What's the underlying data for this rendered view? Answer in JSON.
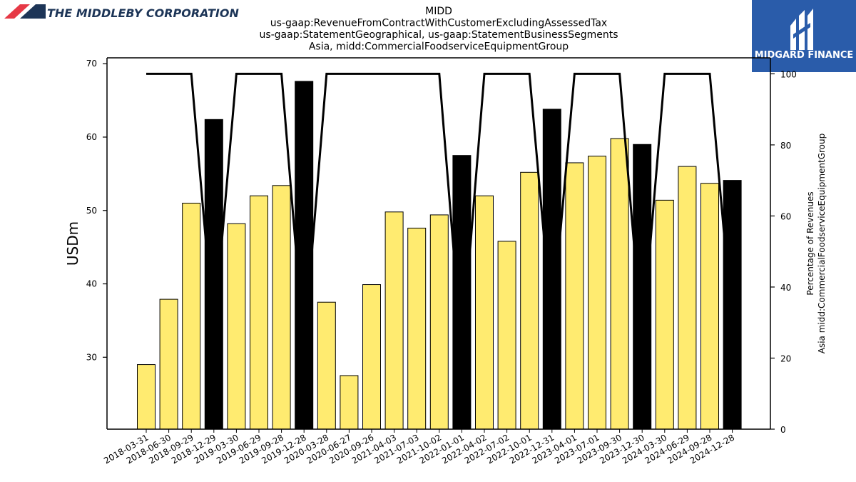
{
  "header": {
    "company_name": "THE MIDDLEBY CORPORATION",
    "badge_text": "MIDGARD FINANCE",
    "colors": {
      "brand_red": "#e63946",
      "brand_navy": "#1d3557",
      "badge_blue": "#2a5caa"
    }
  },
  "chart_data": {
    "type": "bar",
    "title_lines": [
      "MIDD",
      "us-gaap:RevenueFromContractWithCustomerExcludingAssessedTax",
      "us-gaap:StatementGeographical, us-gaap:StatementBusinessSegments",
      "Asia, midd:CommercialFoodserviceEquipmentGroup"
    ],
    "ylabel": "USDm",
    "y2label_lines": [
      "Percentage of Revenues",
      "Asia midd:CommercialFoodserviceEquipmentGroup"
    ],
    "ylim": [
      20.2,
      70.8
    ],
    "y2lim": [
      0,
      104.5
    ],
    "yticks": [
      30,
      40,
      50,
      60,
      70
    ],
    "y2ticks": [
      0,
      20,
      40,
      60,
      80,
      100
    ],
    "categories": [
      "2018-03-31",
      "2018-06-30",
      "2018-09-29",
      "2018-12-29",
      "2019-03-30",
      "2019-06-29",
      "2019-09-28",
      "2019-12-28",
      "2020-03-28",
      "2020-06-27",
      "2020-09-26",
      "2021-04-03",
      "2021-07-03",
      "2021-10-02",
      "2022-01-01",
      "2022-04-02",
      "2022-07-02",
      "2022-10-01",
      "2022-12-31",
      "2023-04-01",
      "2023-07-01",
      "2023-09-30",
      "2023-12-30",
      "2024-03-30",
      "2024-06-29",
      "2024-09-28",
      "2024-12-28"
    ],
    "series": [
      {
        "kind": "bar",
        "values": [
          29.0,
          37.9,
          51.0,
          62.4,
          48.2,
          52.0,
          53.4,
          67.6,
          37.5,
          27.5,
          39.9,
          49.8,
          47.6,
          49.4,
          57.5,
          52.0,
          45.8,
          55.2,
          63.8,
          56.5,
          57.4,
          59.8,
          59.0,
          51.4,
          56.0,
          53.7,
          54.1
        ],
        "colors": [
          "#ffeb70",
          "#ffeb70",
          "#ffeb70",
          "#000000",
          "#ffeb70",
          "#ffeb70",
          "#ffeb70",
          "#000000",
          "#ffeb70",
          "#ffeb70",
          "#ffeb70",
          "#ffeb70",
          "#ffeb70",
          "#ffeb70",
          "#000000",
          "#ffeb70",
          "#ffeb70",
          "#ffeb70",
          "#000000",
          "#ffeb70",
          "#ffeb70",
          "#ffeb70",
          "#000000",
          "#ffeb70",
          "#ffeb70",
          "#ffeb70",
          "#000000"
        ]
      },
      {
        "kind": "line",
        "axis": "right",
        "color": "#000000",
        "values": [
          100,
          100,
          100,
          27,
          100,
          100,
          100,
          23,
          100,
          100,
          100,
          100,
          100,
          100,
          22,
          100,
          100,
          100,
          29,
          100,
          100,
          100,
          25,
          100,
          100,
          100,
          29
        ]
      }
    ]
  }
}
